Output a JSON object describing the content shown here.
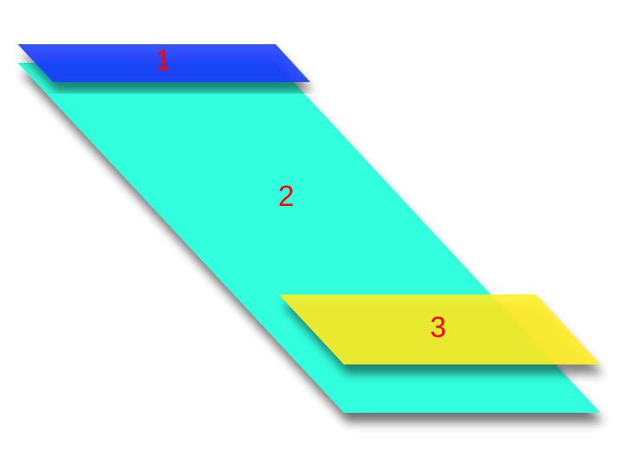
{
  "shapes": [
    {
      "id": "shape-1",
      "label": "1",
      "color": "#3344ff"
    },
    {
      "id": "shape-2",
      "label": "2",
      "color": "#33ffdd"
    },
    {
      "id": "shape-3",
      "label": "3",
      "color": "#ffee22"
    }
  ],
  "label_color": "#ff0000",
  "background": "#ffffff"
}
